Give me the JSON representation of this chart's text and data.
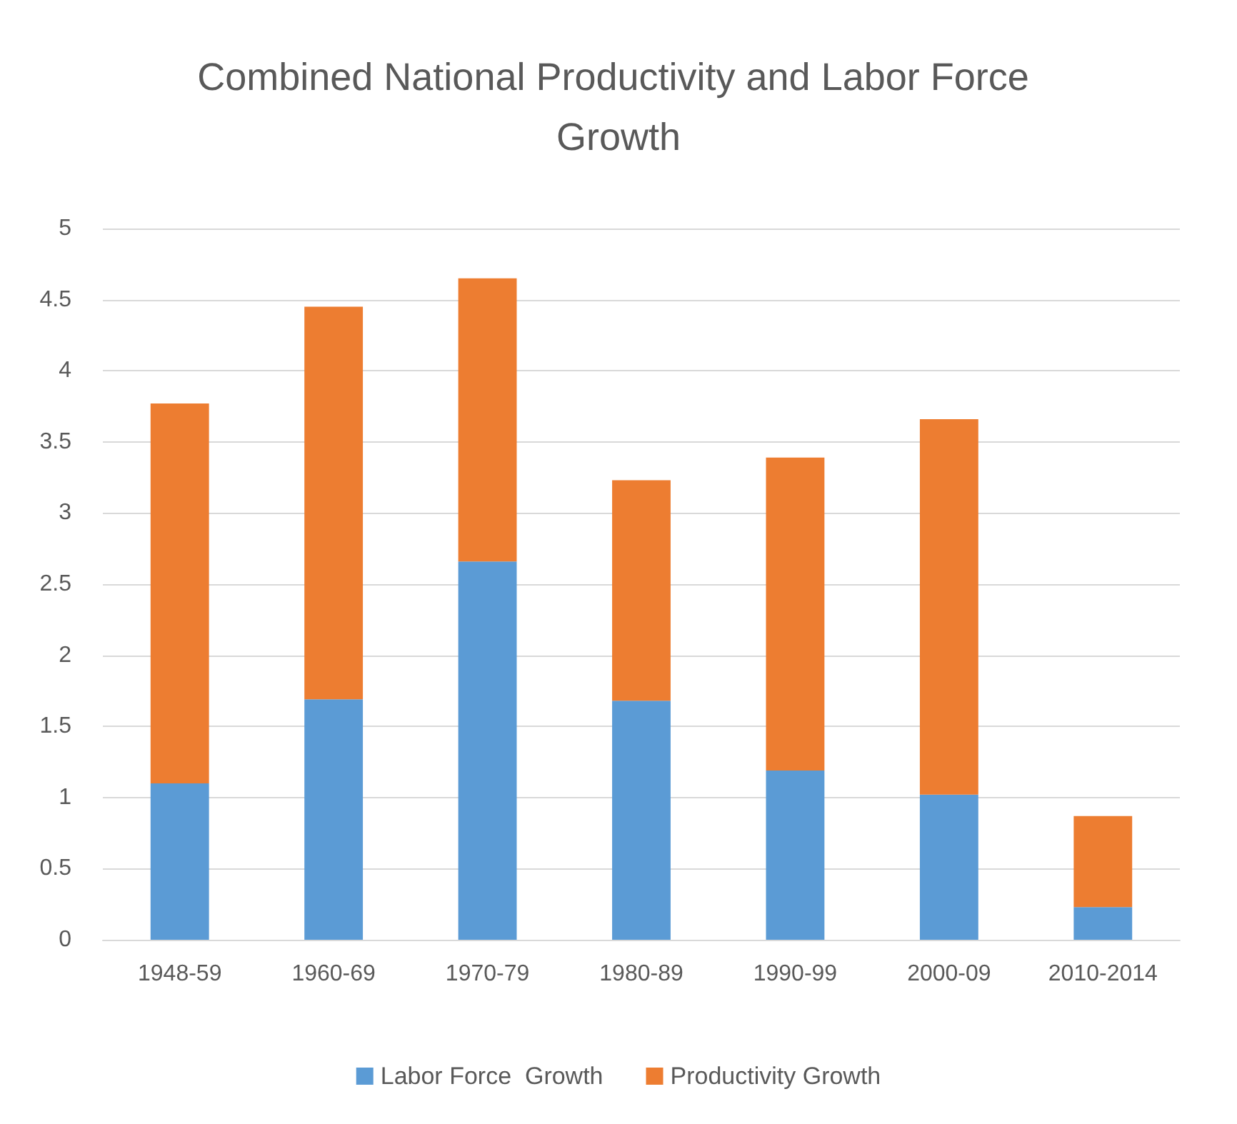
{
  "chart_data": {
    "type": "bar",
    "title": "Combined National Productivity and Labor Force Growth",
    "categories": [
      "1948-59",
      "1960-69",
      "1970-79",
      "1980-89",
      "1990-99",
      "2000-09",
      "2010-2014"
    ],
    "series": [
      {
        "name": "Labor Force  Growth",
        "color": "#5b9bd5",
        "values": [
          1.1,
          1.69,
          2.66,
          1.68,
          1.19,
          1.02,
          0.23
        ]
      },
      {
        "name": "Productivity Growth",
        "color": "#ed7d31",
        "values": [
          2.67,
          2.76,
          1.99,
          1.55,
          2.2,
          2.64,
          0.64
        ]
      }
    ],
    "stacked": true,
    "ylim": [
      0,
      5
    ],
    "yticks": [
      0,
      0.5,
      1,
      1.5,
      2,
      2.5,
      3,
      3.5,
      4,
      4.5,
      5
    ],
    "grid": "y",
    "legend": "bottom"
  }
}
